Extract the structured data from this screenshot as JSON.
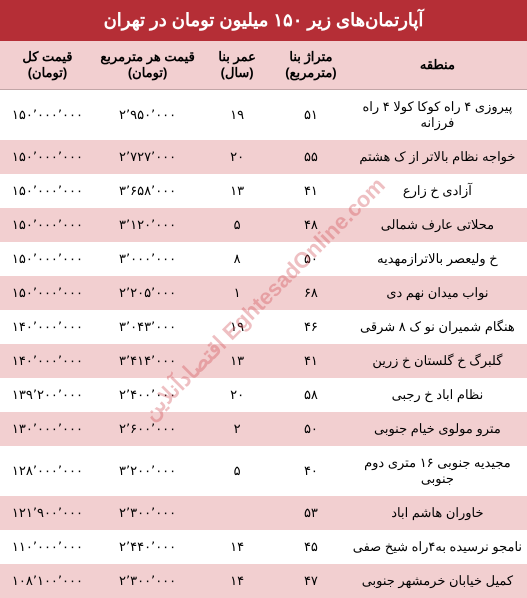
{
  "title": "آپارتمان‌های زیر ۱۵۰ میلیون تومان در تهران",
  "title_bg": "#b52e36",
  "title_color": "#ffffff",
  "stripe_color": "#f2cfd0",
  "watermark_text": "اقتصادآنلاین EghtesadOnline.com",
  "watermark_color": "#d04a52",
  "columns": [
    {
      "key": "region",
      "label": "منطقه"
    },
    {
      "key": "area",
      "label": "متراژ بنا (مترمربع)"
    },
    {
      "key": "age",
      "label": "عمر بنا (سال)"
    },
    {
      "key": "ppm",
      "label": "قیمت هر مترمربع (تومان)"
    },
    {
      "key": "total",
      "label": "قیمت کل (تومان)"
    }
  ],
  "rows": [
    {
      "region": "پیروزی ۴ راه کوکا کولا ۴ راه فرزانه",
      "area": "۵۱",
      "age": "۱۹",
      "ppm": "۲٬۹۵۰٬۰۰۰",
      "total": "۱۵۰٬۰۰۰٬۰۰۰"
    },
    {
      "region": "خواجه نظام بالاتر از ک هشتم",
      "area": "۵۵",
      "age": "۲۰",
      "ppm": "۲٬۷۲۷٬۰۰۰",
      "total": "۱۵۰٬۰۰۰٬۰۰۰"
    },
    {
      "region": "آزادی خ زارع",
      "area": "۴۱",
      "age": "۱۳",
      "ppm": "۳٬۶۵۸٬۰۰۰",
      "total": "۱۵۰٬۰۰۰٬۰۰۰"
    },
    {
      "region": "محلاتی عارف شمالی",
      "area": "۴۸",
      "age": "۵",
      "ppm": "۳٬۱۲۰٬۰۰۰",
      "total": "۱۵۰٬۰۰۰٬۰۰۰"
    },
    {
      "region": "خ ولیعصر بالاترازمهدیه",
      "area": "۵۰",
      "age": "۸",
      "ppm": "۳٬۰۰۰٬۰۰۰",
      "total": "۱۵۰٬۰۰۰٬۰۰۰"
    },
    {
      "region": "نواب میدان نهم دی",
      "area": "۶۸",
      "age": "۱",
      "ppm": "۲٬۲۰۵٬۰۰۰",
      "total": "۱۵۰٬۰۰۰٬۰۰۰"
    },
    {
      "region": "هنگام شمیران نو ک ۸ شرقی",
      "area": "۴۶",
      "age": "۱۹",
      "ppm": "۳٬۰۴۳٬۰۰۰",
      "total": "۱۴۰٬۰۰۰٬۰۰۰"
    },
    {
      "region": "گلبرگ خ گلستان خ زرین",
      "area": "۴۱",
      "age": "۱۳",
      "ppm": "۳٬۴۱۴٬۰۰۰",
      "total": "۱۴۰٬۰۰۰٬۰۰۰"
    },
    {
      "region": "نظام اباد خ رجبی",
      "area": "۵۸",
      "age": "۲۰",
      "ppm": "۲٬۴۰۰٬۰۰۰",
      "total": "۱۳۹٬۲۰۰٬۰۰۰"
    },
    {
      "region": "مترو مولوی خیام جنوبی",
      "area": "۵۰",
      "age": "۲",
      "ppm": "۲٬۶۰۰٬۰۰۰",
      "total": "۱۳۰٬۰۰۰٬۰۰۰"
    },
    {
      "region": "مجیدیه جنوبی ۱۶ متری دوم جنوبی",
      "area": "۴۰",
      "age": "۵",
      "ppm": "۳٬۲۰۰٬۰۰۰",
      "total": "۱۲۸٬۰۰۰٬۰۰۰"
    },
    {
      "region": "خاوران هاشم اباد",
      "area": "۵۳",
      "age": "",
      "ppm": "۲٬۳۰۰٬۰۰۰",
      "total": "۱۲۱٬۹۰۰٬۰۰۰"
    },
    {
      "region": "نامجو نرسیده به۴راه شیخ صفی",
      "area": "۴۵",
      "age": "۱۴",
      "ppm": "۲٬۴۴۰٬۰۰۰",
      "total": "۱۱۰٬۰۰۰٬۰۰۰"
    },
    {
      "region": "کمیل خیابان خرمشهر جنوبی",
      "area": "۴۷",
      "age": "۱۴",
      "ppm": "۲٬۳۰۰٬۰۰۰",
      "total": "۱۰۸٬۱۰۰٬۰۰۰"
    }
  ]
}
